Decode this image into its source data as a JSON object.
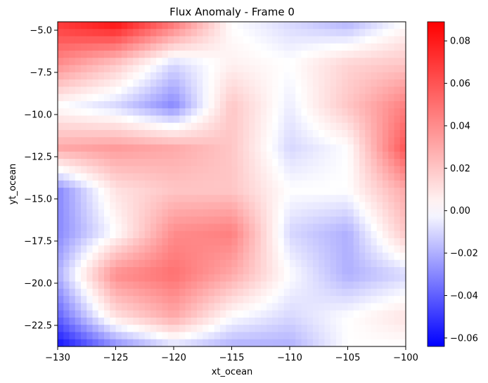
{
  "chart_data": {
    "type": "heatmap",
    "title": "Flux Anomaly - Frame 0",
    "xlabel": "xt_ocean",
    "ylabel": "yt_ocean",
    "xlim": [
      -130,
      -100
    ],
    "ylim": [
      -23.75,
      -4.5
    ],
    "xticks": [
      -130,
      -125,
      -120,
      -115,
      -110,
      -105,
      -100
    ],
    "yticks": [
      -5.0,
      -7.5,
      -10.0,
      -12.5,
      -15.0,
      -17.5,
      -20.0,
      -22.5
    ],
    "xtick_labels": [
      "−130",
      "−125",
      "−120",
      "−115",
      "−110",
      "−105",
      "−100"
    ],
    "ytick_labels": [
      "−5.0",
      "−7.5",
      "−10.0",
      "−12.5",
      "−15.0",
      "−17.5",
      "−20.0",
      "−22.5"
    ],
    "colormap": "bwr",
    "colors": {
      "low": "#0000ff",
      "mid": "#ffffff",
      "high": "#ff0000"
    },
    "color_range": [
      -0.064,
      0.089
    ],
    "colorbar_ticks": [
      0.08,
      0.06,
      0.04,
      0.02,
      0.0,
      -0.02,
      -0.04,
      -0.06
    ],
    "colorbar_tick_labels": [
      "0.08",
      "0.06",
      "0.04",
      "0.02",
      "0.00",
      "−0.02",
      "−0.04",
      "−0.06"
    ],
    "grid": false,
    "field_x": [
      -130,
      -125,
      -120,
      -115,
      -110,
      -105,
      -100
    ],
    "field_y": [
      -4.5,
      -7.0,
      -9.5,
      -12.0,
      -14.5,
      -17.0,
      -19.5,
      -22.0,
      -23.75
    ],
    "field_values": [
      [
        0.07,
        0.085,
        0.05,
        0.0,
        -0.01,
        -0.02,
        0.0
      ],
      [
        0.04,
        0.02,
        -0.01,
        0.005,
        0.0,
        0.015,
        0.02
      ],
      [
        0.0,
        -0.01,
        -0.03,
        0.02,
        -0.005,
        0.02,
        0.045
      ],
      [
        0.03,
        0.035,
        0.03,
        0.02,
        -0.01,
        0.0,
        0.06
      ],
      [
        -0.03,
        0.01,
        0.02,
        0.02,
        0.0,
        0.0,
        0.03
      ],
      [
        -0.03,
        0.0,
        0.04,
        0.045,
        -0.01,
        -0.02,
        0.02
      ],
      [
        -0.02,
        0.04,
        0.05,
        0.03,
        0.0,
        -0.02,
        -0.01
      ],
      [
        -0.04,
        0.01,
        0.03,
        0.0,
        -0.01,
        0.0,
        0.01
      ],
      [
        -0.06,
        -0.03,
        -0.01,
        -0.02,
        -0.02,
        0.0,
        0.0
      ]
    ]
  }
}
